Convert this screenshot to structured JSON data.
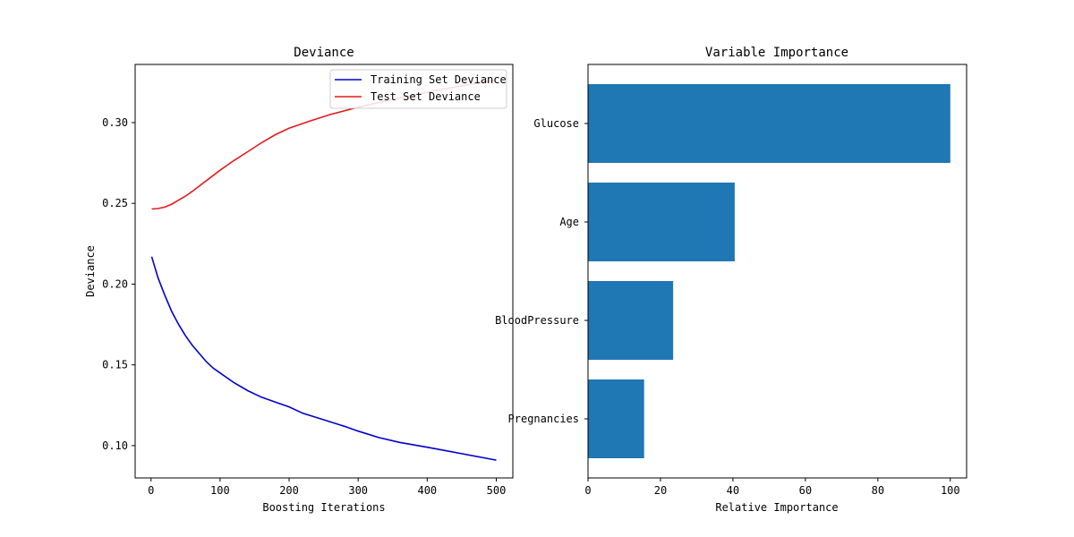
{
  "chart_data": [
    {
      "type": "line",
      "title": "Deviance",
      "xlabel": "Boosting Iterations",
      "ylabel": "Deviance",
      "xlim": [
        -23,
        524
      ],
      "ylim": [
        0.08,
        0.336
      ],
      "xticks": [
        0,
        100,
        200,
        300,
        400,
        500
      ],
      "yticks": [
        0.1,
        0.15,
        0.2,
        0.25,
        0.3
      ],
      "ytick_labels": [
        "0.10",
        "0.15",
        "0.20",
        "0.25",
        "0.30"
      ],
      "legend": "top-right",
      "series": [
        {
          "name": "Training Set Deviance",
          "color": "#0000cc",
          "x": [
            1,
            10,
            20,
            30,
            40,
            50,
            60,
            70,
            80,
            90,
            100,
            120,
            140,
            160,
            180,
            200,
            220,
            250,
            280,
            300,
            330,
            360,
            400,
            450,
            500
          ],
          "y": [
            0.217,
            0.204,
            0.193,
            0.183,
            0.175,
            0.168,
            0.162,
            0.157,
            0.152,
            0.148,
            0.145,
            0.139,
            0.134,
            0.13,
            0.127,
            0.124,
            0.12,
            0.116,
            0.112,
            0.109,
            0.105,
            0.102,
            0.099,
            0.095,
            0.091
          ]
        },
        {
          "name": "Test Set Deviance",
          "color": "#e31a1c",
          "x": [
            1,
            10,
            20,
            30,
            40,
            50,
            60,
            80,
            100,
            120,
            140,
            160,
            180,
            200,
            230,
            260,
            300,
            340,
            380,
            420,
            460,
            500
          ],
          "y": [
            0.2465,
            0.2468,
            0.2477,
            0.2495,
            0.252,
            0.2545,
            0.2575,
            0.264,
            0.2705,
            0.2765,
            0.282,
            0.2875,
            0.2925,
            0.2965,
            0.301,
            0.305,
            0.3095,
            0.3135,
            0.317,
            0.3205,
            0.3235,
            0.3265
          ]
        }
      ]
    },
    {
      "type": "bar",
      "orientation": "horizontal",
      "title": "Variable Importance",
      "xlabel": "Relative Importance",
      "ylabel": "",
      "xlim": [
        0,
        104.5
      ],
      "xticks": [
        0,
        20,
        40,
        60,
        80,
        100
      ],
      "bar_color": "#1f77b4",
      "categories": [
        "Glucose",
        "Age",
        "BloodPressure",
        "Pregnancies"
      ],
      "values": [
        100,
        40.5,
        23.5,
        15.5
      ]
    }
  ]
}
